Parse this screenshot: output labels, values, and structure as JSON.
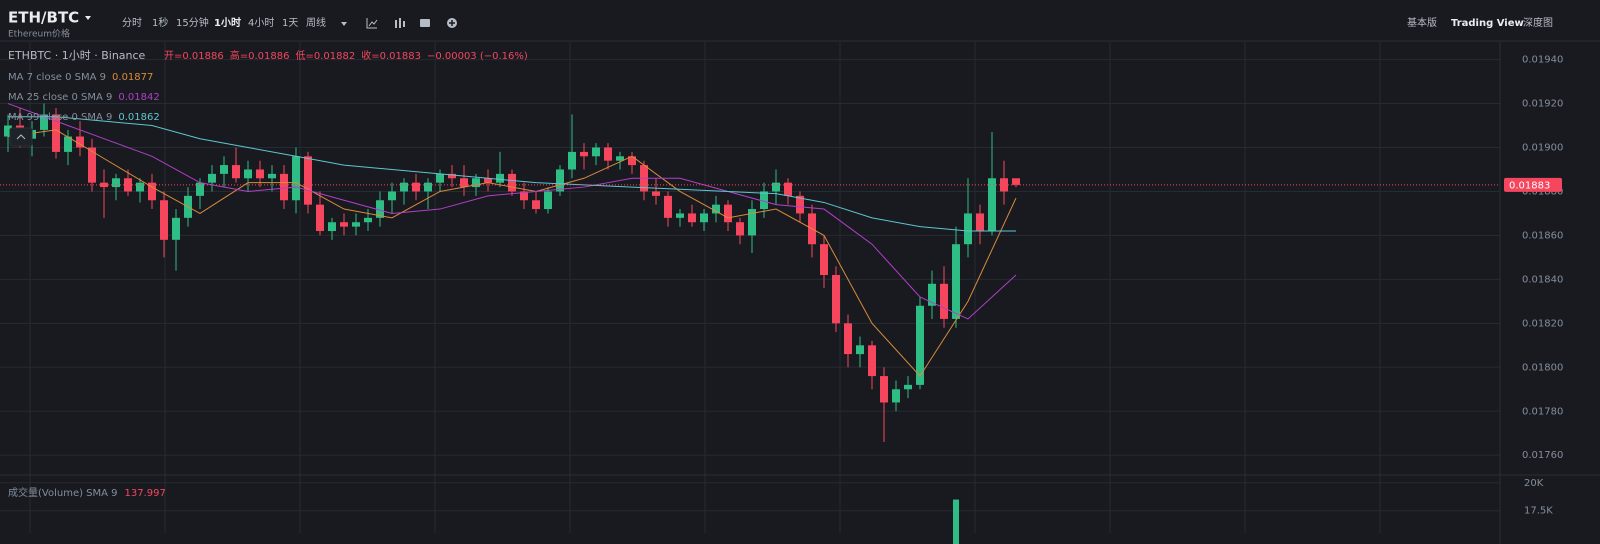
{
  "header": {
    "symbol": "ETH/BTC",
    "subtitle": "Ethereum价格",
    "timeframes": [
      "分时",
      "1秒",
      "15分钟",
      "1小时",
      "4小时",
      "1天",
      "周线"
    ],
    "views": [
      "基本版",
      "Trading View",
      "深度图"
    ]
  },
  "chart_data": {
    "type": "candlestick",
    "title": "ETHBTC · 1小时 · Binance",
    "ohlc_legend": [
      "开=0.01886",
      "高=0.01886",
      "低=0.01882",
      "收=0.01883",
      "−0.00003 (−0.16%)"
    ],
    "up_color": "#2ebd85",
    "down_color": "#f6465d",
    "open": [
      0.01905,
      0.0191,
      0.01904,
      0.01908,
      0.01915,
      0.01898,
      0.01905,
      0.019,
      0.01884,
      0.01882,
      0.01886,
      0.0188,
      0.01884,
      0.01876,
      0.01858,
      0.01868,
      0.01878,
      0.01884,
      0.01888,
      0.01892,
      0.01886,
      0.0189,
      0.01886,
      0.01888,
      0.01876,
      0.01896,
      0.01874,
      0.01862,
      0.01866,
      0.01864,
      0.01866,
      0.01868,
      0.01876,
      0.0188,
      0.01884,
      0.0188,
      0.01884,
      0.01888,
      0.01886,
      0.01882,
      0.01886,
      0.01884,
      0.01888,
      0.0188,
      0.01876,
      0.01872,
      0.0188,
      0.0189,
      0.01898,
      0.01896,
      0.019,
      0.01894,
      0.01896,
      0.01892,
      0.0188,
      0.01878,
      0.01868,
      0.0187,
      0.01866,
      0.0187,
      0.01874,
      0.01866,
      0.0186,
      0.01872,
      0.0188,
      0.01884,
      0.01878,
      0.0187,
      0.01856,
      0.01842,
      0.0182,
      0.01806,
      0.0181,
      0.01796,
      0.01784,
      0.0179,
      0.01792,
      0.01828,
      0.01838,
      0.01822,
      0.01856,
      0.0187,
      0.01862,
      0.01886,
      0.01886
    ],
    "high": [
      0.01915,
      0.01918,
      0.01912,
      0.0192,
      0.01918,
      0.01908,
      0.01912,
      0.01904,
      0.0189,
      0.01888,
      0.0189,
      0.01886,
      0.01888,
      0.0188,
      0.01872,
      0.01882,
      0.01886,
      0.01892,
      0.01896,
      0.019,
      0.01894,
      0.01894,
      0.01892,
      0.01892,
      0.019,
      0.01898,
      0.0188,
      0.01868,
      0.0187,
      0.0187,
      0.01872,
      0.0188,
      0.01884,
      0.01886,
      0.01888,
      0.01886,
      0.0189,
      0.01892,
      0.01892,
      0.01888,
      0.0189,
      0.01898,
      0.0189,
      0.01884,
      0.0188,
      0.01882,
      0.01892,
      0.01915,
      0.01902,
      0.01902,
      0.01902,
      0.01898,
      0.01898,
      0.01894,
      0.01886,
      0.0188,
      0.01872,
      0.01874,
      0.01872,
      0.01878,
      0.01876,
      0.01868,
      0.01876,
      0.01884,
      0.0189,
      0.01886,
      0.0188,
      0.01874,
      0.0186,
      0.01846,
      0.01824,
      0.01814,
      0.01812,
      0.018,
      0.01794,
      0.01796,
      0.01832,
      0.01844,
      0.01846,
      0.01864,
      0.01886,
      0.01874,
      0.01907,
      0.01894,
      0.01886
    ],
    "low": [
      0.01898,
      0.019,
      0.01896,
      0.01905,
      0.01895,
      0.01892,
      0.01896,
      0.0188,
      0.01868,
      0.01876,
      0.01878,
      0.01875,
      0.01872,
      0.0185,
      0.01844,
      0.01864,
      0.01872,
      0.0188,
      0.01882,
      0.01884,
      0.0188,
      0.01882,
      0.0188,
      0.01872,
      0.0187,
      0.0187,
      0.0186,
      0.01858,
      0.0186,
      0.0186,
      0.01862,
      0.01864,
      0.0187,
      0.01874,
      0.01876,
      0.01872,
      0.0188,
      0.01882,
      0.01878,
      0.01878,
      0.0188,
      0.01882,
      0.01878,
      0.01872,
      0.0187,
      0.0187,
      0.01878,
      0.01886,
      0.0189,
      0.01892,
      0.0189,
      0.0189,
      0.01888,
      0.01876,
      0.01874,
      0.01864,
      0.01864,
      0.01864,
      0.01862,
      0.01866,
      0.01862,
      0.01856,
      0.01852,
      0.01868,
      0.01874,
      0.01874,
      0.01866,
      0.0185,
      0.01836,
      0.01816,
      0.018,
      0.018,
      0.0179,
      0.01766,
      0.0178,
      0.01786,
      0.0179,
      0.01822,
      0.01818,
      0.01818,
      0.0185,
      0.01856,
      0.0186,
      0.01874,
      0.01882
    ],
    "close": [
      0.0191,
      0.01904,
      0.01908,
      0.01915,
      0.01898,
      0.01905,
      0.019,
      0.01884,
      0.01882,
      0.01886,
      0.0188,
      0.01884,
      0.01876,
      0.01858,
      0.01868,
      0.01878,
      0.01884,
      0.01888,
      0.01892,
      0.01886,
      0.0189,
      0.01886,
      0.01888,
      0.01876,
      0.01896,
      0.01874,
      0.01862,
      0.01866,
      0.01864,
      0.01866,
      0.01868,
      0.01876,
      0.0188,
      0.01884,
      0.0188,
      0.01884,
      0.01888,
      0.01886,
      0.01882,
      0.01886,
      0.01884,
      0.01888,
      0.0188,
      0.01876,
      0.01872,
      0.0188,
      0.0189,
      0.01898,
      0.01896,
      0.019,
      0.01894,
      0.01896,
      0.01892,
      0.0188,
      0.01878,
      0.01868,
      0.0187,
      0.01866,
      0.0187,
      0.01874,
      0.01866,
      0.0186,
      0.01872,
      0.0188,
      0.01884,
      0.01878,
      0.0187,
      0.01856,
      0.01842,
      0.0182,
      0.01806,
      0.0181,
      0.01796,
      0.01784,
      0.0179,
      0.01792,
      0.01828,
      0.01838,
      0.01822,
      0.01856,
      0.0187,
      0.01862,
      0.01886,
      0.0188,
      0.01883
    ],
    "ma_x": [
      0,
      4,
      8,
      12,
      16,
      20,
      24,
      28,
      32,
      36,
      40,
      44,
      48,
      52,
      56,
      60,
      64,
      68,
      72,
      76,
      80,
      84
    ],
    "ma_lines": [
      {
        "name": "MA 7 close 0 SMA 9",
        "last": 0.01877,
        "color": "#d98c3a",
        "values": [
          0.01905,
          0.01908,
          0.01895,
          0.01882,
          0.0187,
          0.01884,
          0.01884,
          0.01872,
          0.01868,
          0.0188,
          0.01884,
          0.0188,
          0.01886,
          0.01896,
          0.0188,
          0.01868,
          0.01872,
          0.0186,
          0.0182,
          0.01796,
          0.0183,
          0.01877
        ]
      },
      {
        "name": "MA 25 close 0 SMA 9",
        "last": 0.01842,
        "color": "#b23fc8",
        "values": [
          0.0192,
          0.01912,
          0.01904,
          0.01896,
          0.01884,
          0.0188,
          0.01882,
          0.01876,
          0.0187,
          0.01872,
          0.01878,
          0.0188,
          0.01882,
          0.01886,
          0.01886,
          0.0188,
          0.01874,
          0.01872,
          0.01856,
          0.01832,
          0.01822,
          0.01842
        ]
      },
      {
        "name": "MA 99 close 0 SMA 9",
        "last": 0.01862,
        "color": "#5fc6cf",
        "values": [
          0.01914,
          0.01914,
          0.01912,
          0.0191,
          0.01904,
          0.019,
          0.01896,
          0.01892,
          0.0189,
          0.01888,
          0.01886,
          0.01884,
          0.01883,
          0.01882,
          0.01881,
          0.0188,
          0.01879,
          0.01875,
          0.01868,
          0.01864,
          0.01862,
          0.01862
        ]
      }
    ],
    "last_price": 0.01883,
    "ylim": [
      0.01751,
      0.01948
    ],
    "yticks": [
      {
        "value": 0.0176,
        "label": "0.01760"
      },
      {
        "value": 0.0178,
        "label": "0.01780"
      },
      {
        "value": 0.018,
        "label": "0.01800"
      },
      {
        "value": 0.0182,
        "label": "0.01820"
      },
      {
        "value": 0.0184,
        "label": "0.01840"
      },
      {
        "value": 0.0186,
        "label": "0.01860"
      },
      {
        "value": 0.0188,
        "label": "0.01880"
      },
      {
        "value": 0.019,
        "label": "0.01900"
      },
      {
        "value": 0.0192,
        "label": "0.01920"
      },
      {
        "value": 0.0194,
        "label": "0.01940"
      }
    ],
    "volume": {
      "name": "成交量(Volume) SMA 9",
      "last": 137.997,
      "values": [
        null,
        null,
        null,
        null,
        null,
        null,
        null,
        null,
        null,
        null,
        null,
        null,
        null,
        null,
        null,
        null,
        null,
        null,
        null,
        null,
        null,
        null,
        null,
        null,
        null,
        null,
        null,
        null,
        null,
        null,
        null,
        null,
        null,
        null,
        null,
        null,
        null,
        null,
        null,
        null,
        null,
        null,
        null,
        null,
        null,
        null,
        null,
        null,
        null,
        null,
        null,
        null,
        null,
        null,
        null,
        null,
        null,
        null,
        null,
        null,
        null,
        null,
        null,
        null,
        null,
        null,
        null,
        null,
        null,
        null,
        null,
        null,
        null,
        null,
        null,
        null,
        null,
        null,
        null,
        18500,
        null,
        null,
        null,
        null,
        null
      ],
      "ylim": [
        15500,
        20700
      ],
      "yticks": [
        {
          "value": 17500,
          "label": "17.5K"
        },
        {
          "value": 20000,
          "label": "20K"
        }
      ]
    },
    "grid": true
  }
}
